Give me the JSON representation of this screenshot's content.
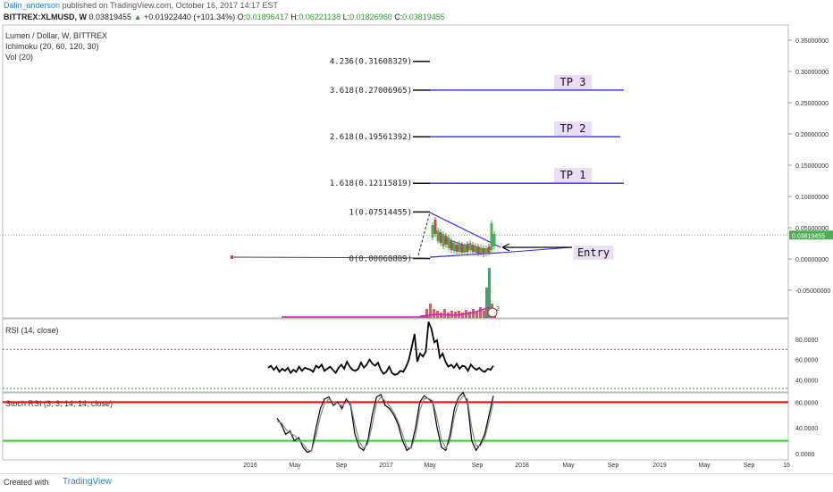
{
  "header": {
    "author": "Dalin_anderson",
    "published_text": "published on TradingView.com, October 16, 2017 14:17 EST",
    "symbol": "BITTREX:XLMUSD, W",
    "last": "0.03819455",
    "change_arrow": "▲",
    "change": "+0.01922440 (+101.34%)",
    "o_label": "O:",
    "o": "0.01896417",
    "h_label": "H:",
    "h": "0.06221138",
    "l_label": "L:",
    "l": "0.01826960",
    "c_label": "C:",
    "c": "0.03819455"
  },
  "indicators": {
    "title": "Lumen / Dollar, W, BITTREX",
    "ichimoku": "Ichimoku (20, 60, 120, 30)",
    "vol": "Vol (20)",
    "rsi": "RSI (14, close)",
    "stoch": "Stoch RSI (3, 3, 14, 14, close)"
  },
  "colors": {
    "fib_line": "#111111",
    "tp_line": "#2a2aff",
    "tp_box": "#eadcf5",
    "candle_up": "#4caf50",
    "candle_down": "#b05050",
    "rsi_ob": "#e53935",
    "rsi_os": "#2ca02c",
    "stoch_ob": "#ff0000",
    "stoch_os": "#22dd22",
    "last_price_tag": "#4caf50"
  },
  "chart_data": [
    {
      "type": "line",
      "title": "Lumen / Dollar, W, BITTREX",
      "price_axis_ticks": [
        "0.35000000",
        "0.30000000",
        "0.25000000",
        "0.20000000",
        "0.15000000",
        "0.10000000",
        "0.05000000",
        "0.00000000",
        "-0.05000000"
      ],
      "price_axis_values": [
        0.35,
        0.3,
        0.25,
        0.2,
        0.15,
        0.1,
        0.05,
        0.0,
        -0.05
      ],
      "ylim": [
        -0.09,
        0.37
      ],
      "last_price_tag": "0.03819455",
      "last_price": 0.03819455,
      "x_ticks": [
        "2016",
        "May",
        "Sep",
        "2017",
        "May",
        "Sep",
        "2018",
        "May",
        "Sep",
        "2019",
        "May",
        "Sep",
        "16"
      ],
      "fib_levels": [
        {
          "label": "4.236(0.31608329)",
          "value": 0.31608329
        },
        {
          "label": "3.618(0.27006965)",
          "value": 0.27006965
        },
        {
          "label": "2.618(0.19561392)",
          "value": 0.19561392
        },
        {
          "label": "1.618(0.12115819)",
          "value": 0.12115819
        },
        {
          "label": "1(0.07514455)",
          "value": 0.07514455
        },
        {
          "label": "0(0.00068889)",
          "value": 0.00068889
        }
      ],
      "targets": [
        {
          "label": "TP 3",
          "value": 0.27006965
        },
        {
          "label": "TP 2",
          "value": 0.19561392
        },
        {
          "label": "TP 1",
          "value": 0.12115819
        }
      ],
      "entry_label": "Entry",
      "entry_value": 0.019,
      "vol_badge": "2"
    },
    {
      "type": "line",
      "title": "RSI (14, close)",
      "ticks": [
        "80.0000",
        "60.0000",
        "40.0000"
      ],
      "tick_values": [
        80,
        60,
        40
      ],
      "ylim": [
        30,
        100
      ],
      "overbought": 70,
      "oversold": 30,
      "series": [
        {
          "values": [
            52,
            54,
            50,
            53,
            48,
            51,
            49,
            52,
            47,
            50,
            48,
            53,
            49,
            52,
            51,
            50,
            48,
            54,
            52,
            55,
            49,
            51,
            53,
            50,
            47,
            52,
            55,
            51,
            58,
            53,
            50,
            49,
            51,
            57,
            52,
            55,
            60,
            56,
            54,
            57,
            50,
            46,
            48,
            53,
            47,
            45,
            46,
            49,
            48,
            53,
            60,
            72,
            85,
            58,
            66,
            63,
            68,
            97,
            90,
            77,
            79,
            62,
            66,
            58,
            53,
            55,
            52,
            56,
            51,
            54,
            53,
            49,
            55,
            52,
            50,
            52,
            49,
            48,
            51,
            50,
            54
          ]
        }
      ]
    },
    {
      "type": "line",
      "title": "Stoch RSI (3, 3, 14, 14, close)",
      "ticks": [
        "80.0000",
        "40.0000",
        "0.0000"
      ],
      "tick_values": [
        80,
        40,
        0
      ],
      "ylim": [
        -5,
        100
      ],
      "overbought": 80,
      "oversold": 20,
      "series": [
        {
          "values": [
            55,
            45,
            30,
            35,
            20,
            25,
            10,
            2,
            5,
            40,
            70,
            85,
            88,
            75,
            80,
            70,
            85,
            75,
            30,
            10,
            5,
            20,
            60,
            88,
            92,
            75,
            70,
            60,
            45,
            20,
            5,
            10,
            40,
            80,
            90,
            85,
            80,
            40,
            10,
            5,
            30,
            70,
            88,
            95,
            80,
            20,
            5,
            15,
            30,
            60,
            90
          ]
        },
        {
          "values": [
            50,
            48,
            38,
            32,
            28,
            22,
            15,
            6,
            4,
            28,
            58,
            78,
            85,
            80,
            78,
            74,
            80,
            78,
            45,
            18,
            8,
            15,
            45,
            78,
            88,
            82,
            74,
            64,
            50,
            30,
            10,
            8,
            28,
            68,
            85,
            86,
            82,
            55,
            22,
            8,
            20,
            58,
            80,
            90,
            85,
            40,
            12,
            12,
            24,
            50,
            80
          ]
        }
      ]
    }
  ],
  "footer": {
    "created": "Created with",
    "brand": "TradingView"
  }
}
